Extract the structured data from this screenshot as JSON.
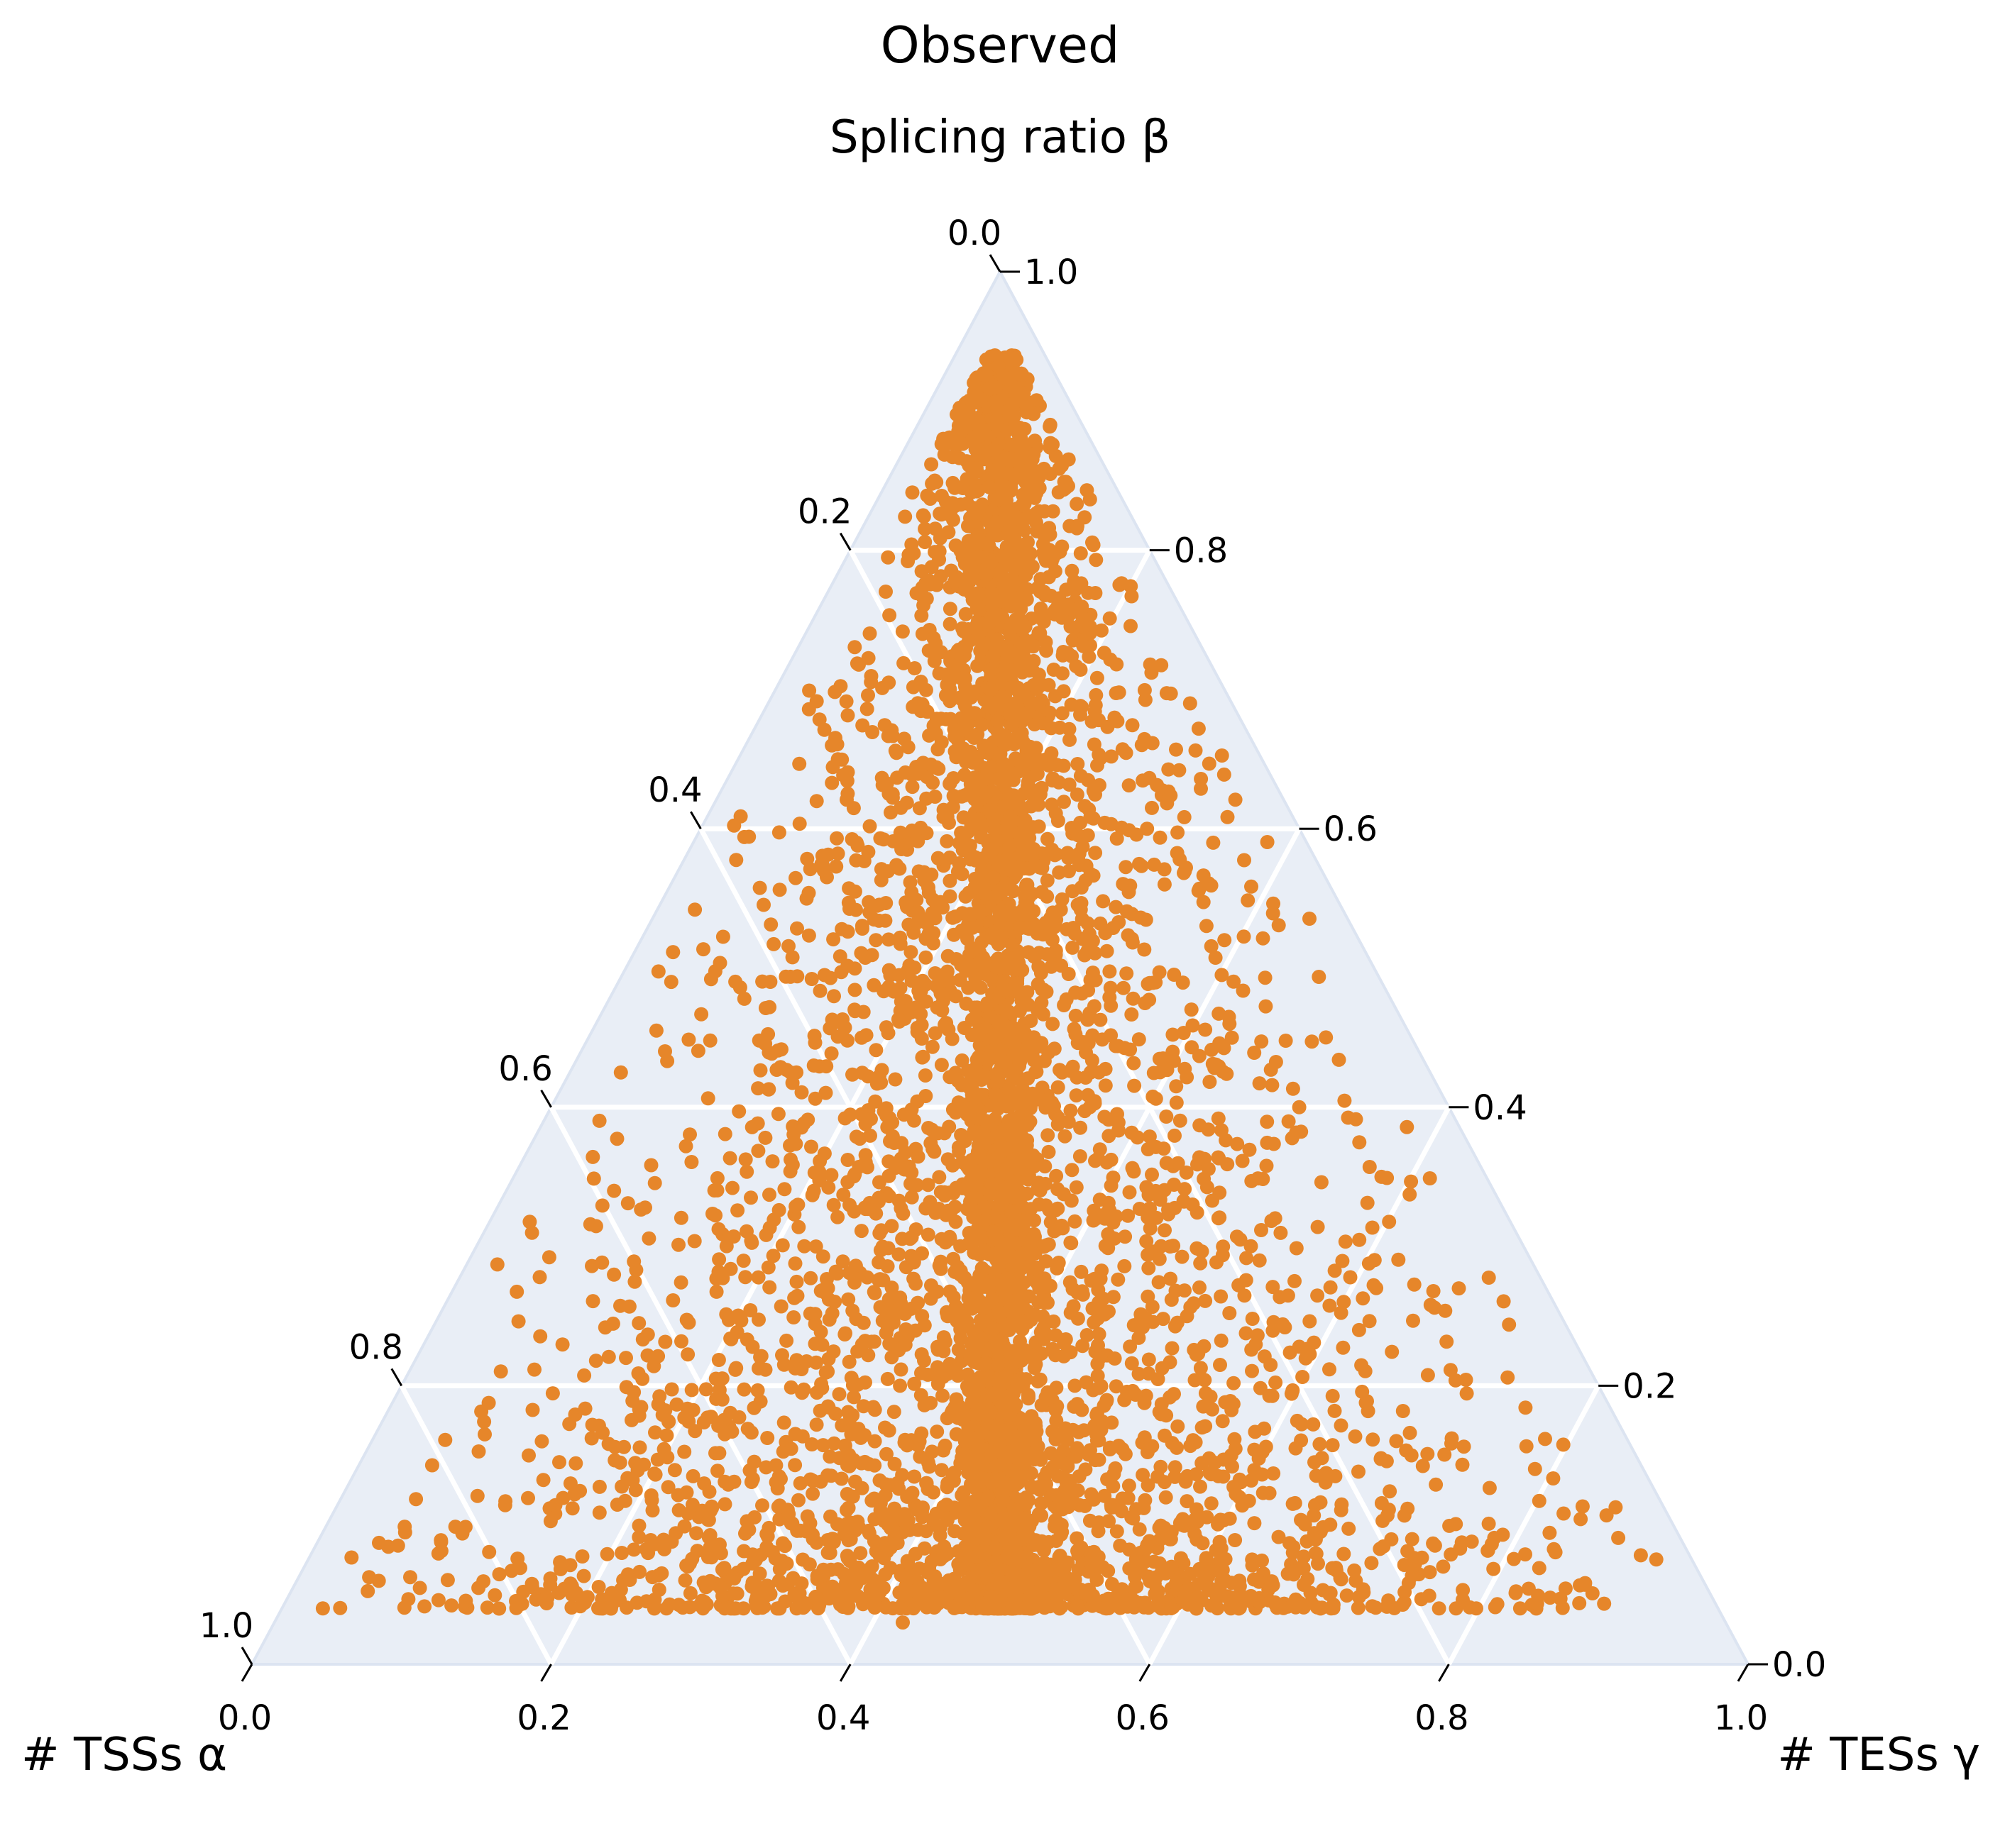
{
  "chart_data": {
    "type": "scatter",
    "subtype": "ternary",
    "title": "Observed",
    "axes": {
      "top": {
        "label": "Splicing ratio β",
        "variable": "beta"
      },
      "left": {
        "label": "# TSSs α",
        "variable": "alpha"
      },
      "right": {
        "label": "# TESs γ",
        "variable": "gamma"
      }
    },
    "tick_values": [
      0.0,
      0.2,
      0.4,
      0.6,
      0.8,
      1.0
    ],
    "tick_labels": [
      "0.0",
      "0.2",
      "0.4",
      "0.6",
      "0.8",
      "1.0"
    ],
    "grid": true,
    "marker_color": "#E6862A",
    "background_color": "#E9EEF6",
    "gridline_color": "#FFFFFF",
    "point_count_estimate": 6000,
    "representative_points_beta_gamma": [
      [
        0.93,
        0.46
      ],
      [
        0.87,
        0.47
      ],
      [
        0.85,
        0.51
      ],
      [
        0.84,
        0.46
      ],
      [
        0.81,
        0.52
      ],
      [
        0.81,
        0.55
      ],
      [
        0.77,
        0.44
      ],
      [
        0.77,
        0.5
      ],
      [
        0.74,
        0.4
      ],
      [
        0.74,
        0.55
      ],
      [
        0.72,
        0.5
      ],
      [
        0.71,
        0.58
      ],
      [
        0.67,
        0.42
      ],
      [
        0.66,
        0.5
      ],
      [
        0.65,
        0.61
      ],
      [
        0.62,
        0.37
      ],
      [
        0.6,
        0.52
      ],
      [
        0.59,
        0.63
      ],
      [
        0.56,
        0.33
      ],
      [
        0.55,
        0.47
      ],
      [
        0.55,
        0.66
      ],
      [
        0.52,
        0.39
      ],
      [
        0.5,
        0.55
      ],
      [
        0.5,
        0.7
      ],
      [
        0.47,
        0.29
      ],
      [
        0.45,
        0.43
      ],
      [
        0.45,
        0.63
      ],
      [
        0.42,
        0.22
      ],
      [
        0.4,
        0.36
      ],
      [
        0.4,
        0.5
      ],
      [
        0.4,
        0.72
      ],
      [
        0.37,
        0.27
      ],
      [
        0.35,
        0.58
      ],
      [
        0.33,
        0.2
      ],
      [
        0.32,
        0.41
      ],
      [
        0.32,
        0.67
      ],
      [
        0.3,
        0.78
      ],
      [
        0.27,
        0.25
      ],
      [
        0.25,
        0.34
      ],
      [
        0.25,
        0.5
      ],
      [
        0.24,
        0.62
      ],
      [
        0.22,
        0.14
      ],
      [
        0.22,
        0.8
      ],
      [
        0.2,
        0.45
      ],
      [
        0.19,
        0.83
      ],
      [
        0.18,
        0.3
      ],
      [
        0.17,
        0.55
      ],
      [
        0.15,
        0.11
      ],
      [
        0.15,
        0.7
      ],
      [
        0.13,
        0.4
      ],
      [
        0.12,
        0.6
      ],
      [
        0.12,
        0.87
      ],
      [
        0.1,
        0.49
      ],
      [
        0.09,
        0.33
      ],
      [
        0.08,
        0.52
      ],
      [
        0.07,
        0.44
      ],
      [
        0.06,
        0.63
      ],
      [
        0.04,
        0.22
      ],
      [
        0.04,
        0.5
      ],
      [
        0.03,
        0.42
      ]
    ]
  }
}
